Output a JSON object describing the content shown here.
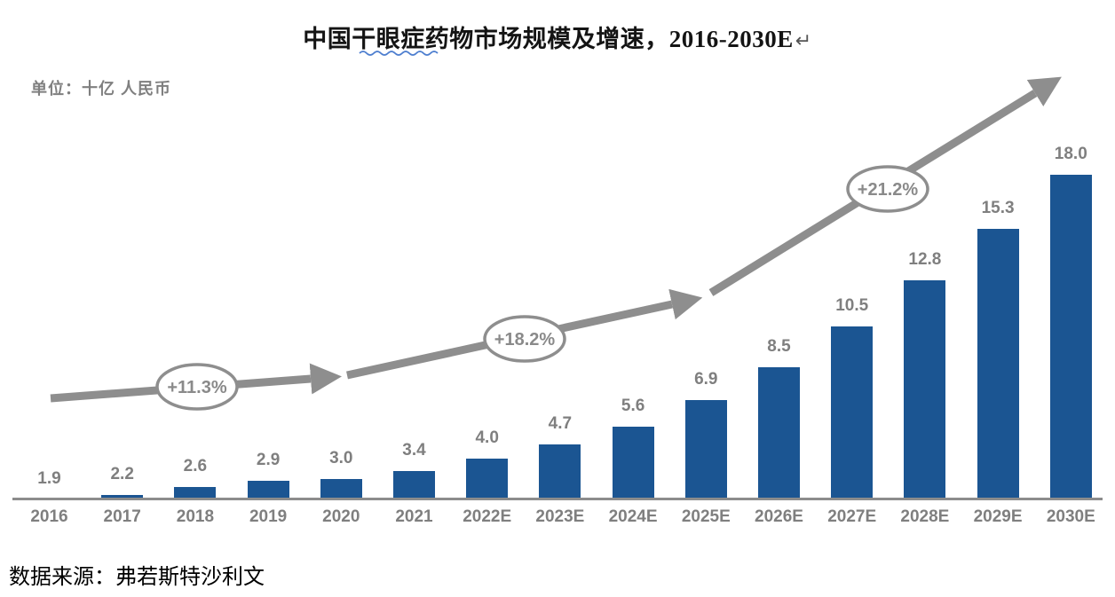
{
  "header": {
    "title": "中国干眼症药物市场规模及增速，2016-2030E",
    "paragraph_mark": "↵"
  },
  "unit_label": "单位：十亿 人民币",
  "source_line": "数据来源：弗若斯特沙利文",
  "colors": {
    "bar_blue": "#1b5592",
    "label_gray": "#7f7f7f",
    "arrow_gray": "#8e8e8e",
    "axis_gray": "#8c8c8c",
    "squiggle_blue": "#4d7ecf",
    "title_black": "#141414"
  },
  "chart_data": {
    "type": "bar",
    "title": "中国干眼症药物市场规模及增速，2016-2030E",
    "xlabel": "",
    "ylabel": "十亿 人民币",
    "categories": [
      "2016",
      "2017",
      "2018",
      "2019",
      "2020",
      "2021",
      "2022E",
      "2023E",
      "2024E",
      "2025E",
      "2026E",
      "2027E",
      "2028E",
      "2029E",
      "2030E"
    ],
    "values": [
      1.9,
      2.2,
      2.6,
      2.9,
      3.0,
      3.4,
      4.0,
      4.7,
      5.6,
      6.9,
      8.5,
      10.5,
      12.8,
      15.3,
      18.0
    ],
    "value_labels": [
      "1.9",
      "2.2",
      "2.6",
      "2.9",
      "3.0",
      "3.4",
      "4.0",
      "4.7",
      "5.6",
      "6.9",
      "8.5",
      "10.5",
      "12.8",
      "15.3",
      "18.0"
    ],
    "grid": false,
    "legend": "none",
    "axis_baseline": 2.0,
    "ylim": [
      2.0,
      18.0
    ],
    "growth_annotations": [
      {
        "label": "+11.3%",
        "line": {
          "x1": 57,
          "y1": 449,
          "x2": 350,
          "y2": 427
        },
        "ellipse": {
          "cx": 222,
          "cy": 436
        }
      },
      {
        "label": "+18.2%",
        "line": {
          "x1": 391,
          "y1": 423,
          "x2": 757,
          "y2": 343
        },
        "ellipse": {
          "cx": 591,
          "cy": 382
        }
      },
      {
        "label": "+21.2%",
        "line": {
          "x1": 801,
          "y1": 330,
          "x2": 1166,
          "y2": 105
        },
        "ellipse": {
          "cx": 1000,
          "cy": 213
        }
      }
    ]
  }
}
